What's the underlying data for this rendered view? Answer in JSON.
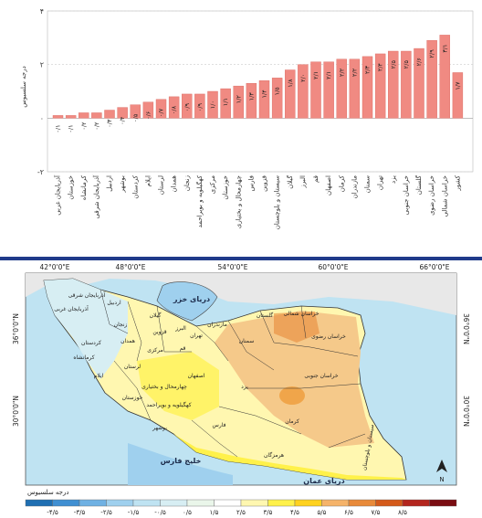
{
  "chart_data": {
    "type": "bar",
    "ylabel": "درجه سلسیوس",
    "ylim": [
      -2,
      4
    ],
    "yticks": [
      "-۲",
      "۰",
      "۲",
      "۴"
    ],
    "ytick_values": [
      -2,
      0,
      2,
      4
    ],
    "categories": [
      "آذربایجان غربی",
      "خوزستان",
      "کرمانشاه",
      "آذربایجان شرقی",
      "اردبیل",
      "بوشهر",
      "کردستان",
      "ایلام",
      "لرستان",
      "همدان",
      "زنجان",
      "کهگیلویه و بویراحمد",
      "مرکزی",
      "خوزستان",
      "چهارمحال و بختیاری",
      "فارس",
      "قزوین",
      "سیستان و بلوچستان",
      "گیلان",
      "البرز",
      "قم",
      "اصفهان",
      "کرمان",
      "مازندران",
      "سمنان",
      "تهران",
      "یزد",
      "خراسان جنوبی",
      "گلستان",
      "خراسان رضوی",
      "خراسان شمالی",
      "کشور"
    ],
    "values": [
      0.1,
      0.1,
      0.2,
      0.2,
      0.3,
      0.4,
      0.5,
      0.6,
      0.7,
      0.8,
      0.9,
      0.9,
      1.0,
      1.1,
      1.2,
      1.3,
      1.4,
      1.5,
      1.8,
      2.0,
      2.1,
      2.1,
      2.2,
      2.2,
      2.3,
      2.4,
      2.5,
      2.5,
      2.6,
      2.9,
      3.1,
      1.7
    ],
    "value_labels": [
      "۰/۱",
      "۰/۱",
      "۰/۲",
      "۰/۲",
      "۰/۳",
      "۰/۴",
      "۰/۵",
      "۰/۶",
      "۰/۷",
      "۰/۸",
      "۰/۹",
      "۰/۹",
      "۱/۰",
      "۱/۱",
      "۱/۲",
      "۱/۳",
      "۱/۴",
      "۱/۵",
      "۱/۸",
      "۲/۰",
      "۲/۱",
      "۲/۱",
      "۲/۲",
      "۲/۲",
      "۲/۳",
      "۲/۴",
      "۲/۵",
      "۲/۵",
      "۲/۶",
      "۲/۹",
      "۳/۱",
      "۱/۷"
    ],
    "bar_color": "#f08a82",
    "grid": true
  },
  "map": {
    "lon_labels": [
      "42°0'0\"E",
      "48°0'0\"E",
      "54°0'0\"E",
      "60°0'0\"E",
      "66°0'0\"E"
    ],
    "lat_labels": [
      "36°0'0\"N",
      "30°0'0\"N"
    ],
    "seas": {
      "caspian": "دریای خزر",
      "gulf": "خلیج فارس",
      "oman": "دریای عمان"
    },
    "provinces": [
      {
        "name": "آذربایجان شرقی"
      },
      {
        "name": "آذربایجان غربی"
      },
      {
        "name": "اردبیل"
      },
      {
        "name": "زنجان"
      },
      {
        "name": "گیلان"
      },
      {
        "name": "مازندران"
      },
      {
        "name": "گلستان"
      },
      {
        "name": "خراسان شمالی"
      },
      {
        "name": "خراسان رضوی"
      },
      {
        "name": "خراسان جنوبی"
      },
      {
        "name": "سمنان"
      },
      {
        "name": "تهران"
      },
      {
        "name": "قزوین"
      },
      {
        "name": "البرز"
      },
      {
        "name": "قم"
      },
      {
        "name": "مرکزی"
      },
      {
        "name": "همدان"
      },
      {
        "name": "کردستان"
      },
      {
        "name": "کرمانشاه"
      },
      {
        "name": "ایلام"
      },
      {
        "name": "لرستان"
      },
      {
        "name": "خوزستان"
      },
      {
        "name": "اصفهان"
      },
      {
        "name": "یزد"
      },
      {
        "name": "کرمان"
      },
      {
        "name": "چهارمحال و بختیاری"
      },
      {
        "name": "کهگیلویه و بویراحمد"
      },
      {
        "name": "فارس"
      },
      {
        "name": "بوشهر"
      },
      {
        "name": "هرمزگان"
      },
      {
        "name": "سیستان و بلوچستان"
      }
    ],
    "legend_title": "درجه سلسیوس",
    "legend_labels": [
      "-۴/۵",
      "-۳/۵",
      "-۲/۵",
      "-۱/۵",
      "-۰/۵",
      "۰/۵",
      "۱/۵",
      "۲/۵",
      "۳/۵",
      "۴/۵",
      "۵/۵",
      "۶/۵",
      "۷/۵",
      "۸/۵"
    ],
    "legend_colors": [
      "#1f6fb2",
      "#3f8fd2",
      "#6fb1e3",
      "#9fd0ee",
      "#bfe3f2",
      "#d7eef3",
      "#eaf6ea",
      "#ffffff",
      "#fff7b0",
      "#fff14a",
      "#ffd21f",
      "#f5b36a",
      "#e88a3a",
      "#d45a1a",
      "#b3261e",
      "#7a0d12"
    ],
    "north": "N"
  }
}
